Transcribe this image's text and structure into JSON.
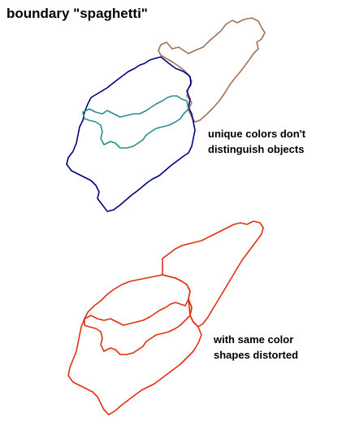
{
  "title": "boundary \"spaghetti\"",
  "notes": {
    "top": {
      "line1": "unique colors don't",
      "line2": "distinguish objects"
    },
    "bottom": {
      "line1": "with same color",
      "line2": "shapes distorted"
    }
  },
  "colors": {
    "background": "#ffffff",
    "text": "#000000",
    "brown_region": "#a0735a",
    "navy_region": "#000080",
    "teal_region": "#2a8f8a",
    "unified_red": "#e03010"
  }
}
